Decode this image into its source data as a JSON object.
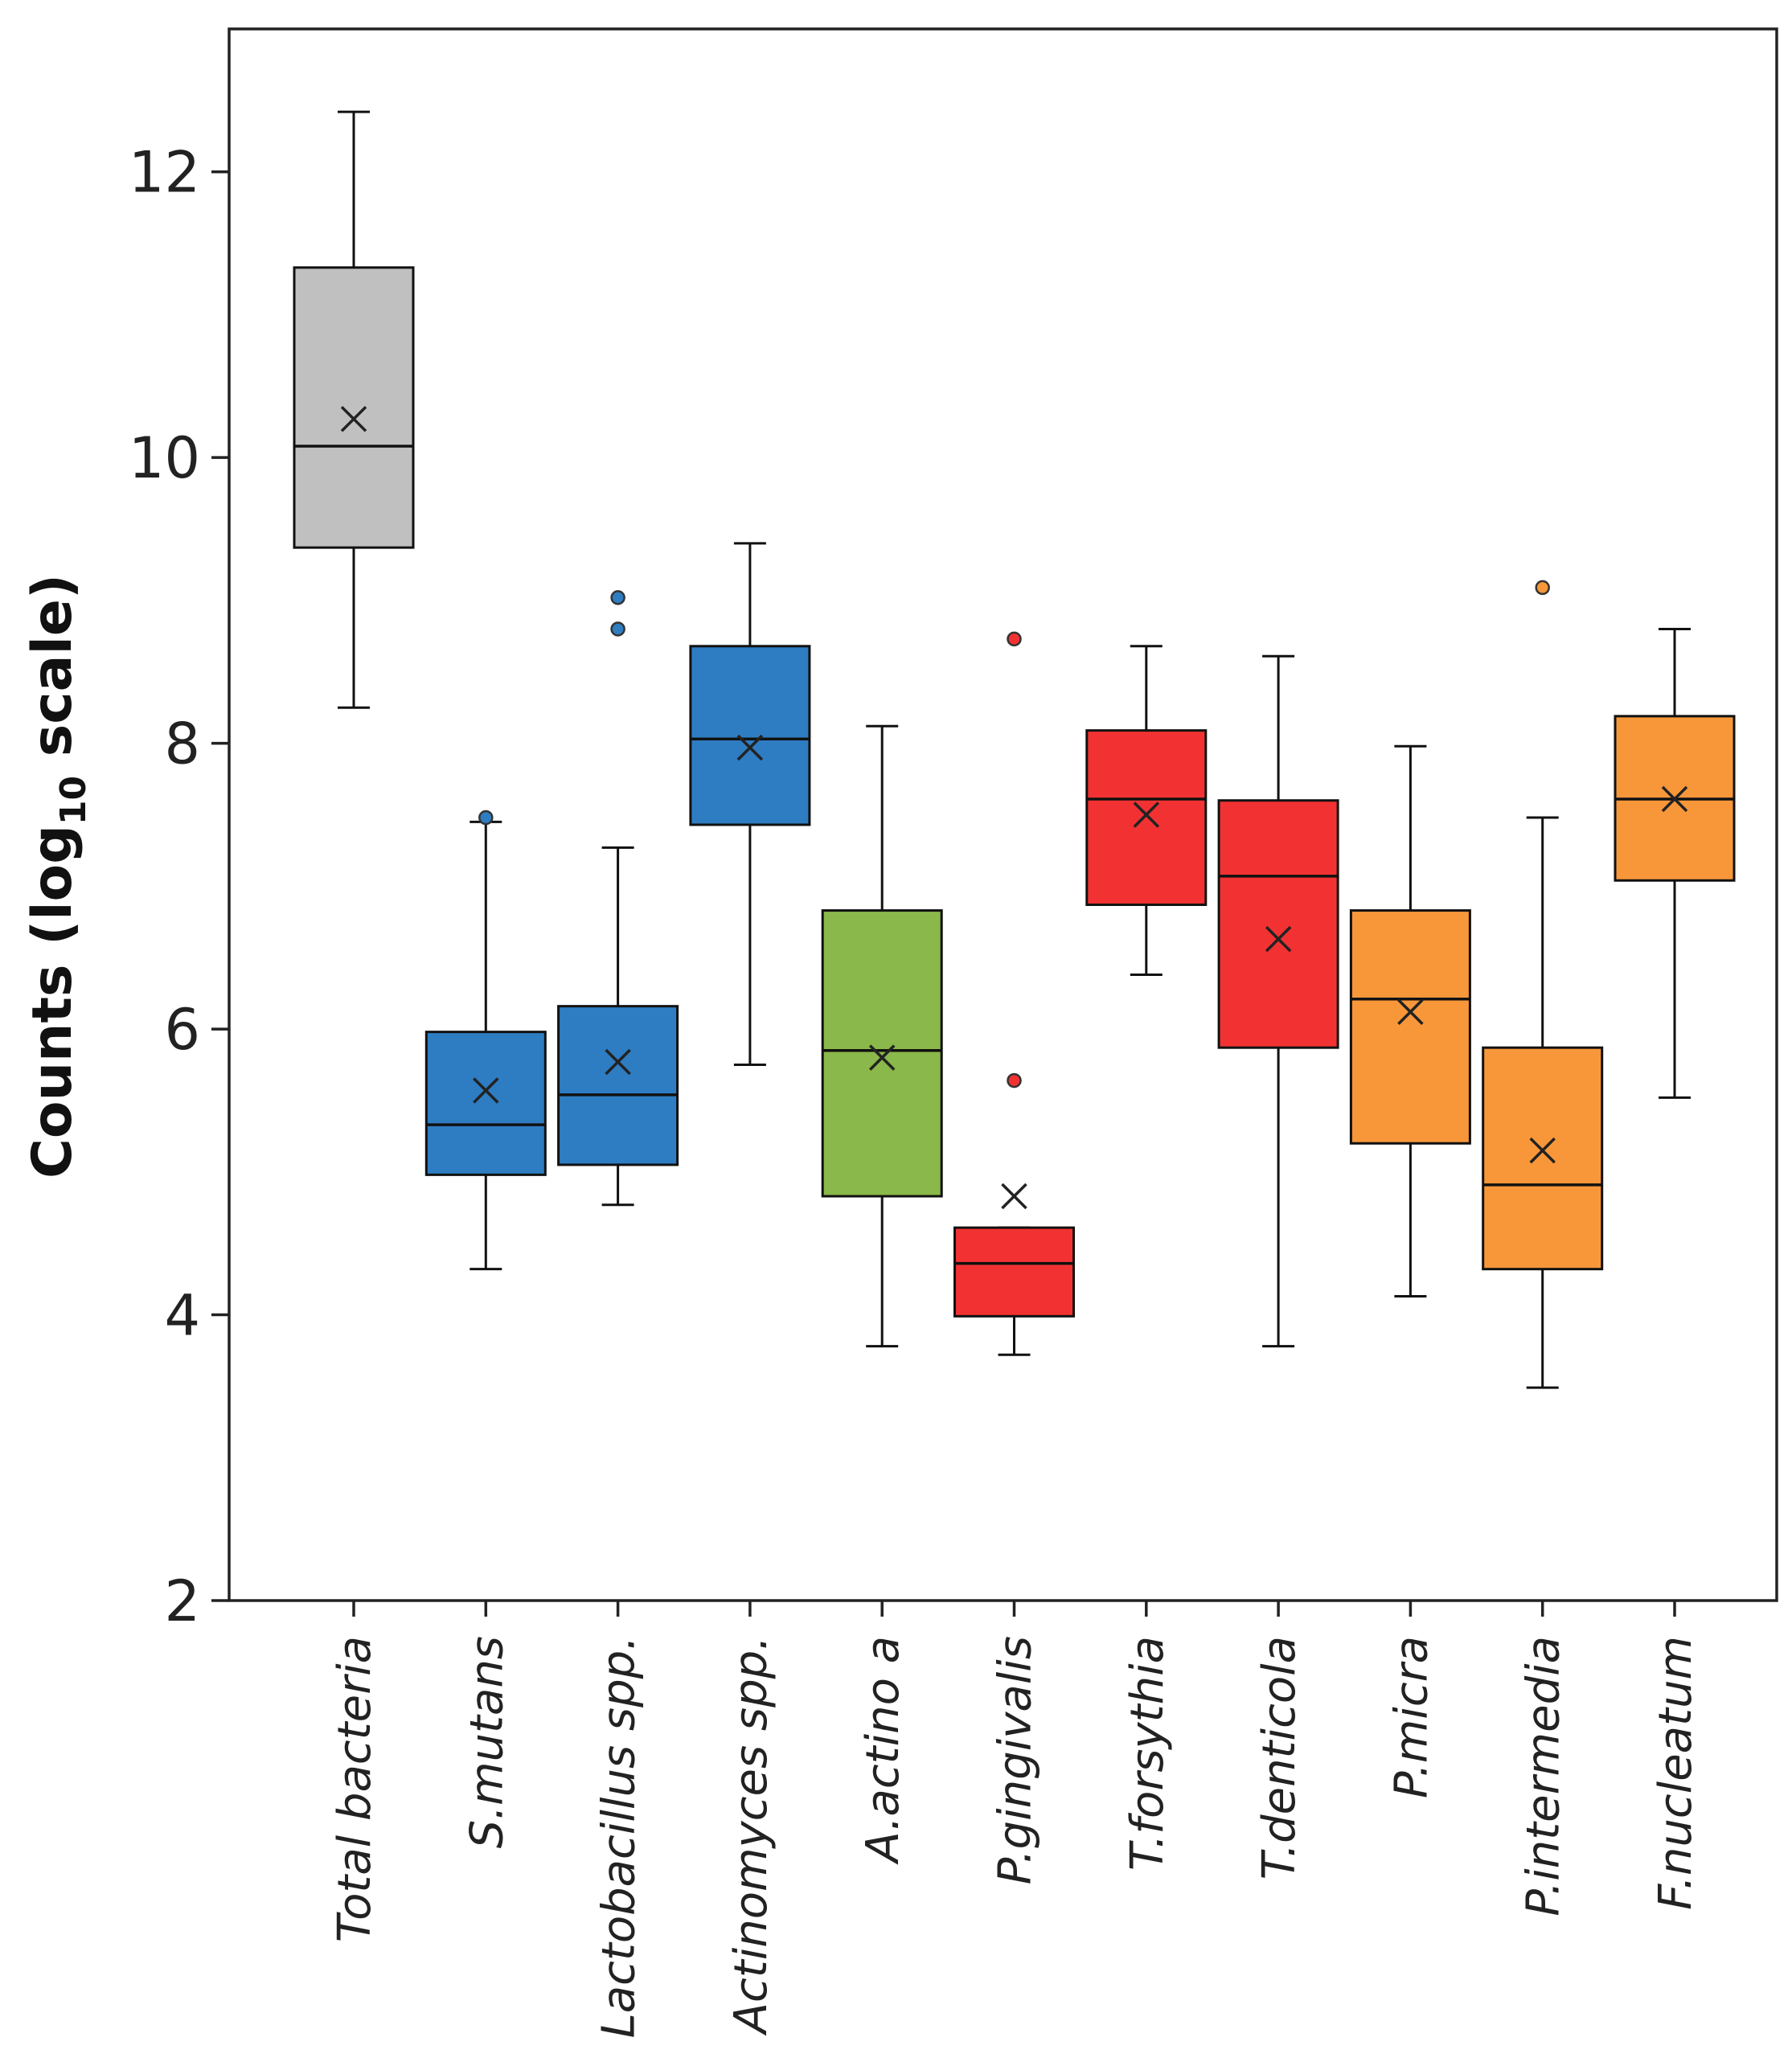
{
  "chart_data": {
    "type": "box",
    "title": "",
    "xlabel": "",
    "ylabel": {
      "prefix": "Counts (log",
      "subscript": "10",
      "suffix": " scale)"
    },
    "ylim": [
      2,
      13
    ],
    "yticks": [
      2,
      4,
      6,
      8,
      10,
      12
    ],
    "categories": [
      "Total bacteria",
      "S.mutans",
      "Lactobacillus spp.",
      "Actinomyces spp.",
      "A.actino a",
      "P.gingivalis",
      "T.forsythia",
      "T.denticola",
      "P.micra",
      "P.intermedia",
      "F.nucleatum"
    ],
    "colors": [
      "#c0c0c0",
      "#2e7dc2",
      "#2e7dc2",
      "#2e7dc2",
      "#8ab84a",
      "#f23232",
      "#f23232",
      "#f23232",
      "#f7973a",
      "#f7973a",
      "#f7973a"
    ],
    "boxes": [
      {
        "whisker_low": 8.25,
        "q1": 9.37,
        "median": 10.08,
        "q3": 11.33,
        "whisker_high": 12.42,
        "mean": 10.27,
        "outliers": []
      },
      {
        "whisker_low": 4.32,
        "q1": 4.98,
        "median": 5.33,
        "q3": 5.98,
        "whisker_high": 7.45,
        "mean": 5.57,
        "outliers": [
          7.48
        ]
      },
      {
        "whisker_low": 4.77,
        "q1": 5.05,
        "median": 5.54,
        "q3": 6.16,
        "whisker_high": 7.27,
        "mean": 5.77,
        "outliers": [
          8.8,
          9.02
        ]
      },
      {
        "whisker_low": 5.75,
        "q1": 7.43,
        "median": 8.03,
        "q3": 8.68,
        "whisker_high": 9.4,
        "mean": 7.97,
        "outliers": []
      },
      {
        "whisker_low": 3.78,
        "q1": 4.83,
        "median": 5.85,
        "q3": 6.83,
        "whisker_high": 8.12,
        "mean": 5.8,
        "outliers": []
      },
      {
        "whisker_low": 3.72,
        "q1": 3.99,
        "median": 4.36,
        "q3": 4.61,
        "whisker_high": 4.61,
        "mean": 4.83,
        "outliers": [
          5.64,
          8.73
        ]
      },
      {
        "whisker_low": 6.38,
        "q1": 6.87,
        "median": 7.61,
        "q3": 8.09,
        "whisker_high": 8.68,
        "mean": 7.5,
        "outliers": []
      },
      {
        "whisker_low": 3.78,
        "q1": 5.87,
        "median": 7.07,
        "q3": 7.6,
        "whisker_high": 8.61,
        "mean": 6.63,
        "outliers": []
      },
      {
        "whisker_low": 4.13,
        "q1": 5.2,
        "median": 6.21,
        "q3": 6.83,
        "whisker_high": 7.98,
        "mean": 6.12,
        "outliers": []
      },
      {
        "whisker_low": 3.49,
        "q1": 4.32,
        "median": 4.91,
        "q3": 5.87,
        "whisker_high": 7.48,
        "mean": 5.15,
        "outliers": [
          9.09
        ]
      },
      {
        "whisker_low": 5.52,
        "q1": 7.04,
        "median": 7.61,
        "q3": 8.19,
        "whisker_high": 8.8,
        "mean": 7.61,
        "outliers": []
      }
    ],
    "legend": "none",
    "grid": false
  }
}
